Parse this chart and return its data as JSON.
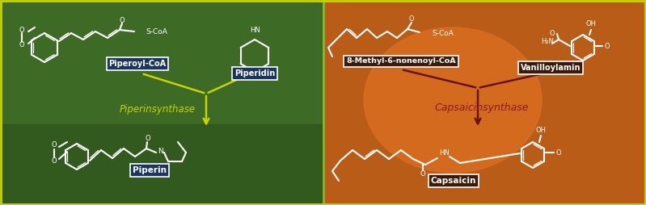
{
  "fig_width": 7.99,
  "fig_height": 2.54,
  "dpi": 100,
  "divider_color": "#8ab830",
  "left_labels": {
    "piperoyl_coa": "Piperoyl-CoA",
    "piperidin": "Piperidin",
    "piperinsynthase": "Piperinsynthase",
    "piperin": "Piperin"
  },
  "right_labels": {
    "methyl_coa": "8-Methyl-6-nonenoyl-CoA",
    "vanilloylamin": "Vanilloylamin",
    "capsaicinsynthase": "Capsaicinsynthase",
    "capsaicin": "Capsaicin"
  },
  "yellow_green": "#c8d400",
  "dark_red": "#6b1010",
  "structure_color_left": "#ffffff",
  "structure_color_right": "#ffffff"
}
